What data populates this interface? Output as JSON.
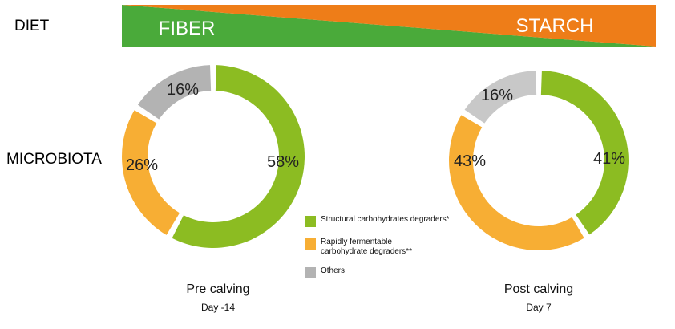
{
  "row_labels": {
    "diet": "DIET",
    "microbiota": "MICROBIOTA"
  },
  "diet_banner": {
    "left_label": "FIBER",
    "right_label": "STARCH",
    "left_color": "#4aaa3a",
    "right_color": "#ee7d18",
    "text_color": "#ffffff"
  },
  "chart_data": [
    {
      "type": "pie",
      "style": "donut",
      "categories": [
        "Structural carbohydrates degraders*",
        "Rapidly fermentable carbohydrate degraders**",
        "Others"
      ],
      "values": [
        58,
        26,
        16
      ],
      "value_labels": [
        "58%",
        "26%",
        "16%"
      ],
      "colors": [
        "#8cbc22",
        "#f7ae34",
        "#b3b3b3"
      ],
      "title": "Pre calving",
      "subtitle": "Day -14"
    },
    {
      "type": "pie",
      "style": "donut",
      "categories": [
        "Structural carbohydrates degraders*",
        "Rapidly fermentable carbohydrate degraders**",
        "Others"
      ],
      "values": [
        41,
        43,
        16
      ],
      "value_labels": [
        "41%",
        "43%",
        "16%"
      ],
      "colors": [
        "#8cbc22",
        "#f7ae34",
        "#c8c8c8"
      ],
      "title": "Post calving",
      "subtitle": "Day 7"
    }
  ],
  "legend": [
    {
      "label": "Structural carbohydrates degraders*",
      "color": "#8cbc22"
    },
    {
      "label": "Rapidly fermentable\ncarbohydrate degraders**",
      "color": "#f7ae34"
    },
    {
      "label": "Others",
      "color": "#b3b3b3"
    }
  ]
}
